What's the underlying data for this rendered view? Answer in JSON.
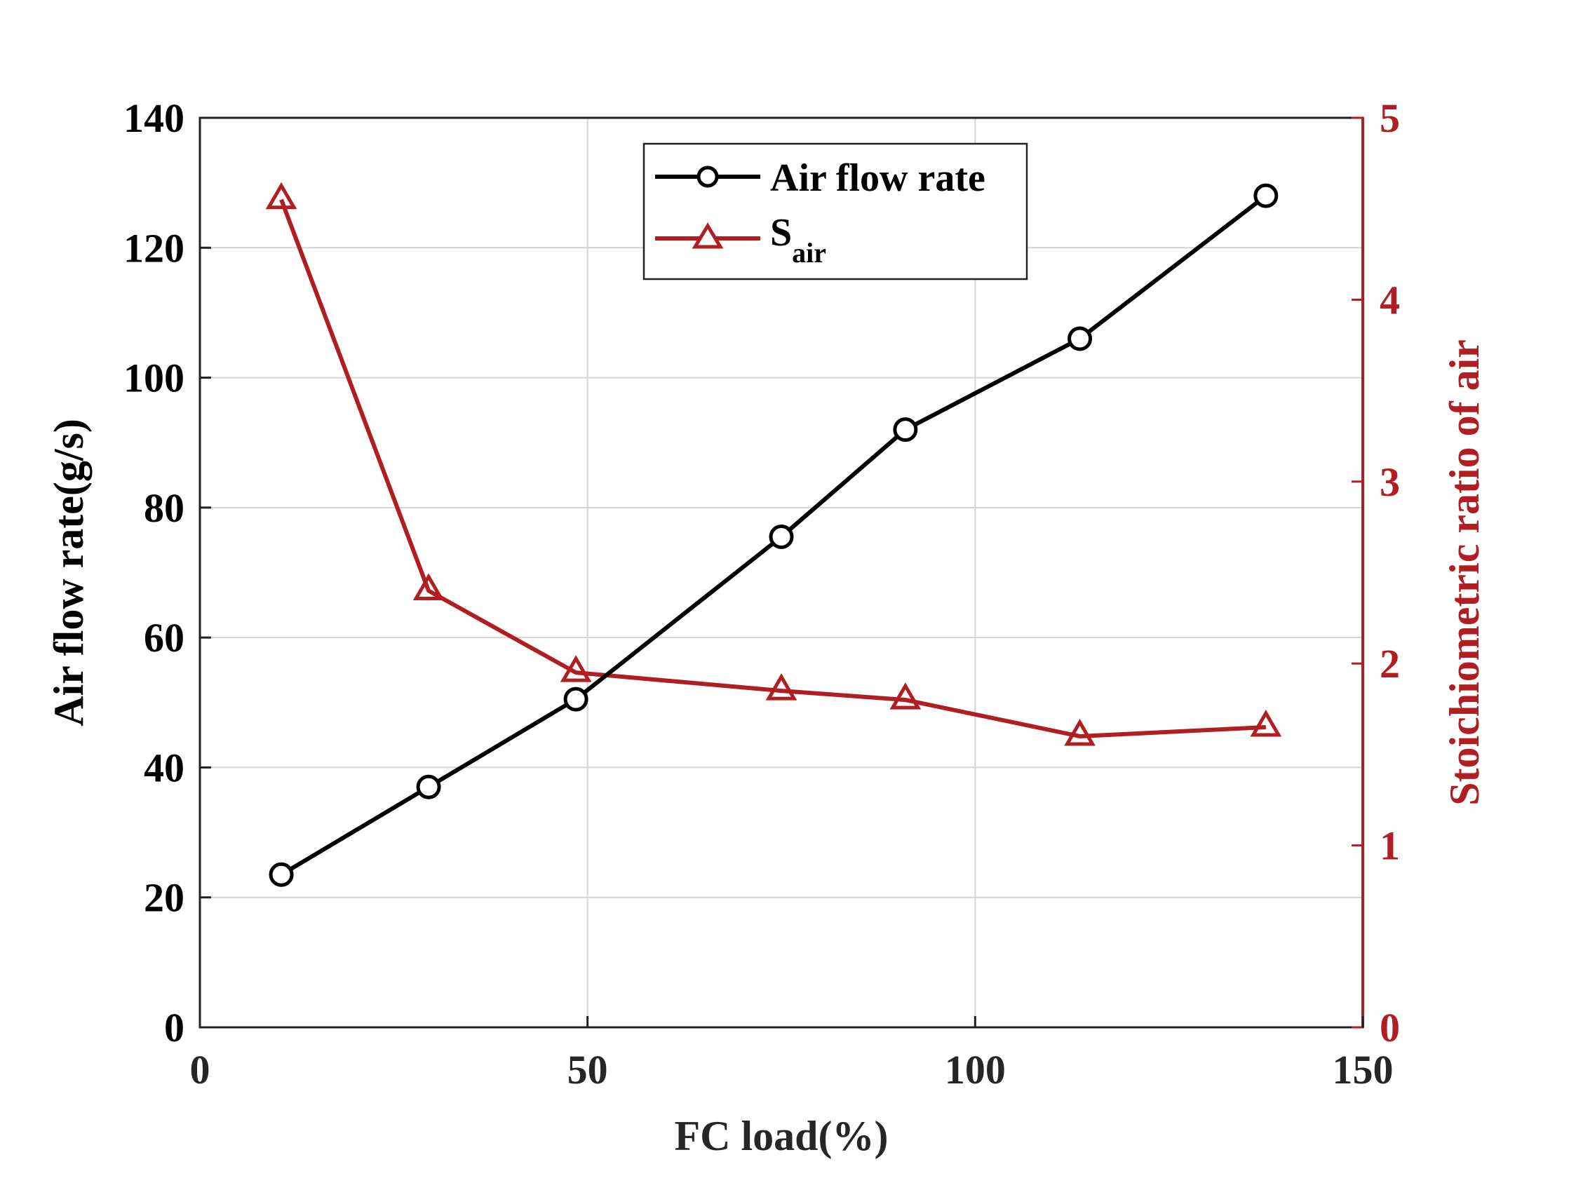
{
  "chart_data": {
    "type": "line",
    "title": "",
    "xlabel": "FC load(%)",
    "ylabel": "Air flow rate(g/s)",
    "y2label": "Stoichiometric ratio of air",
    "xlim": [
      0,
      150
    ],
    "ylim": [
      0,
      140
    ],
    "y2lim": [
      0,
      5
    ],
    "xticks": [
      0,
      50,
      100,
      150
    ],
    "yticks": [
      0,
      20,
      40,
      60,
      80,
      100,
      120,
      140
    ],
    "y2ticks": [
      0,
      1,
      2,
      3,
      4,
      5
    ],
    "grid": true,
    "legend_position": "top-center",
    "series": [
      {
        "name": "Air flow rate",
        "axis": "left",
        "marker": "circle",
        "color": "#000000",
        "x": [
          10.5,
          29.5,
          48.5,
          75,
          91,
          113.5,
          137.5
        ],
        "values": [
          23.5,
          37,
          50.5,
          75.5,
          92,
          106,
          128
        ]
      },
      {
        "name": "S",
        "subscript": "air",
        "axis": "right",
        "marker": "triangle",
        "color": "#B01E22",
        "x": [
          10.5,
          29.5,
          48.5,
          75,
          91,
          113.5,
          137.5
        ],
        "values": [
          4.55,
          2.4,
          1.95,
          1.85,
          1.8,
          1.6,
          1.65
        ]
      }
    ]
  }
}
